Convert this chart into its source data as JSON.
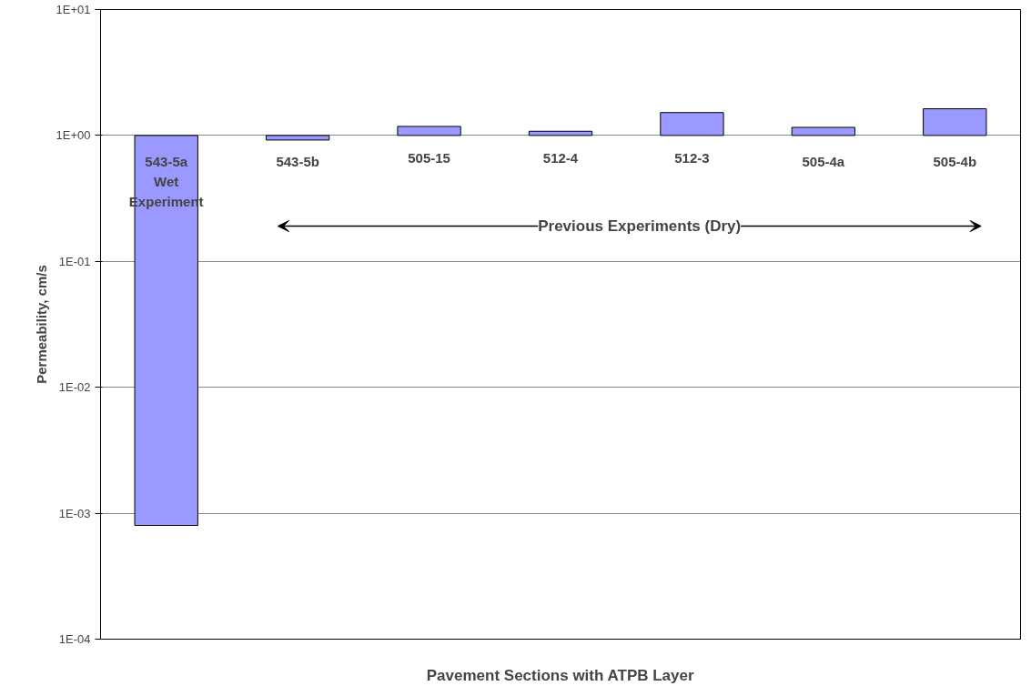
{
  "chart_data": {
    "type": "bar",
    "xlabel": "Pavement Sections with ATPB Layer",
    "ylabel": "Permeability, cm/s",
    "categories": [
      "543-5a",
      "543-5b",
      "505-15",
      "512-4",
      "512-3",
      "505-4a",
      "505-4b"
    ],
    "values": [
      -0.9992,
      -0.08,
      0.18,
      0.08,
      0.52,
      0.16,
      0.63
    ],
    "base": [
      1,
      1,
      1,
      1,
      1,
      1,
      1
    ],
    "color": "#9999ff",
    "log": true,
    "ylim": [
      0.0001,
      10
    ],
    "yticks": [
      {
        "value": 0.0001,
        "label": "1E-04"
      },
      {
        "value": 0.001,
        "label": "1E-03"
      },
      {
        "value": 0.01,
        "label": "1E-02"
      },
      {
        "value": 0.1,
        "label": "1E-01"
      },
      {
        "value": 1,
        "label": "1E+00"
      },
      {
        "value": 10,
        "label": "1E+01"
      }
    ],
    "grid": "y",
    "annotations": [
      "Wet Experiment",
      "Previous Experiments (Dry)"
    ]
  }
}
